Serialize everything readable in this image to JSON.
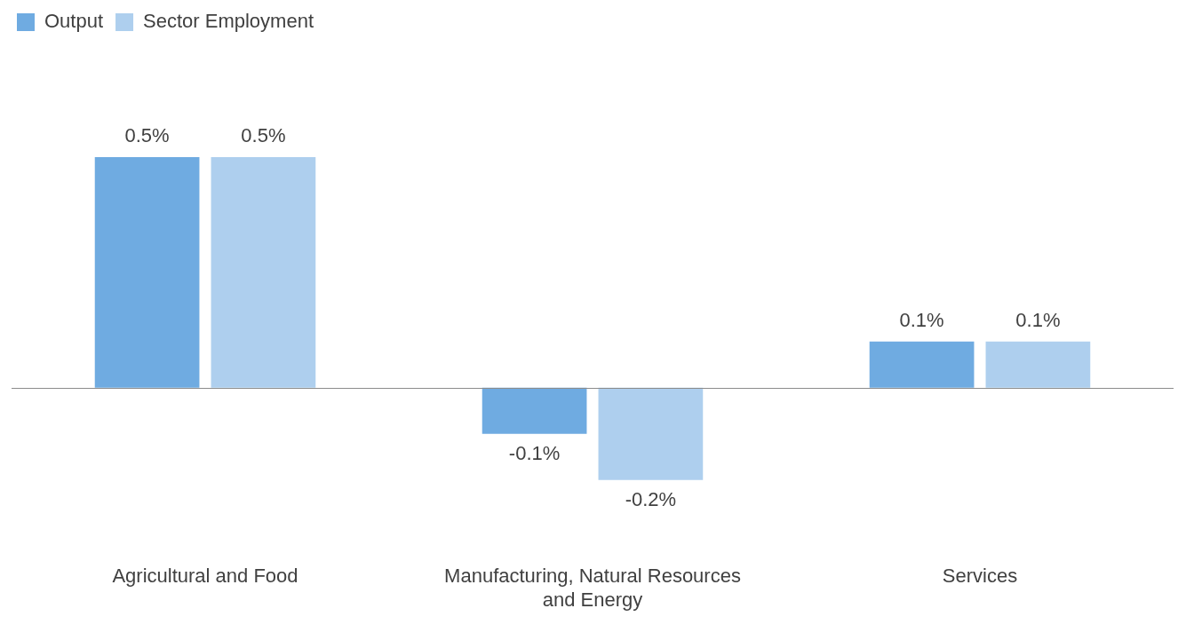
{
  "chart_data": {
    "type": "bar",
    "categories": [
      "Agricultural and Food",
      "Manufacturing, Natural Resources and Energy",
      "Services"
    ],
    "series": [
      {
        "name": "Output",
        "color": "#6fabe1",
        "values": [
          0.5,
          -0.1,
          0.1
        ],
        "value_labels": [
          "0.5%",
          "-0.1%",
          "0.1%"
        ]
      },
      {
        "name": "Sector Employment",
        "color": "#aecfee",
        "values": [
          0.5,
          -0.2,
          0.1
        ],
        "value_labels": [
          "0.5%",
          "-0.2%",
          "0.1%"
        ]
      }
    ],
    "legend": "top left",
    "grid": false,
    "tick_labels": "x"
  }
}
